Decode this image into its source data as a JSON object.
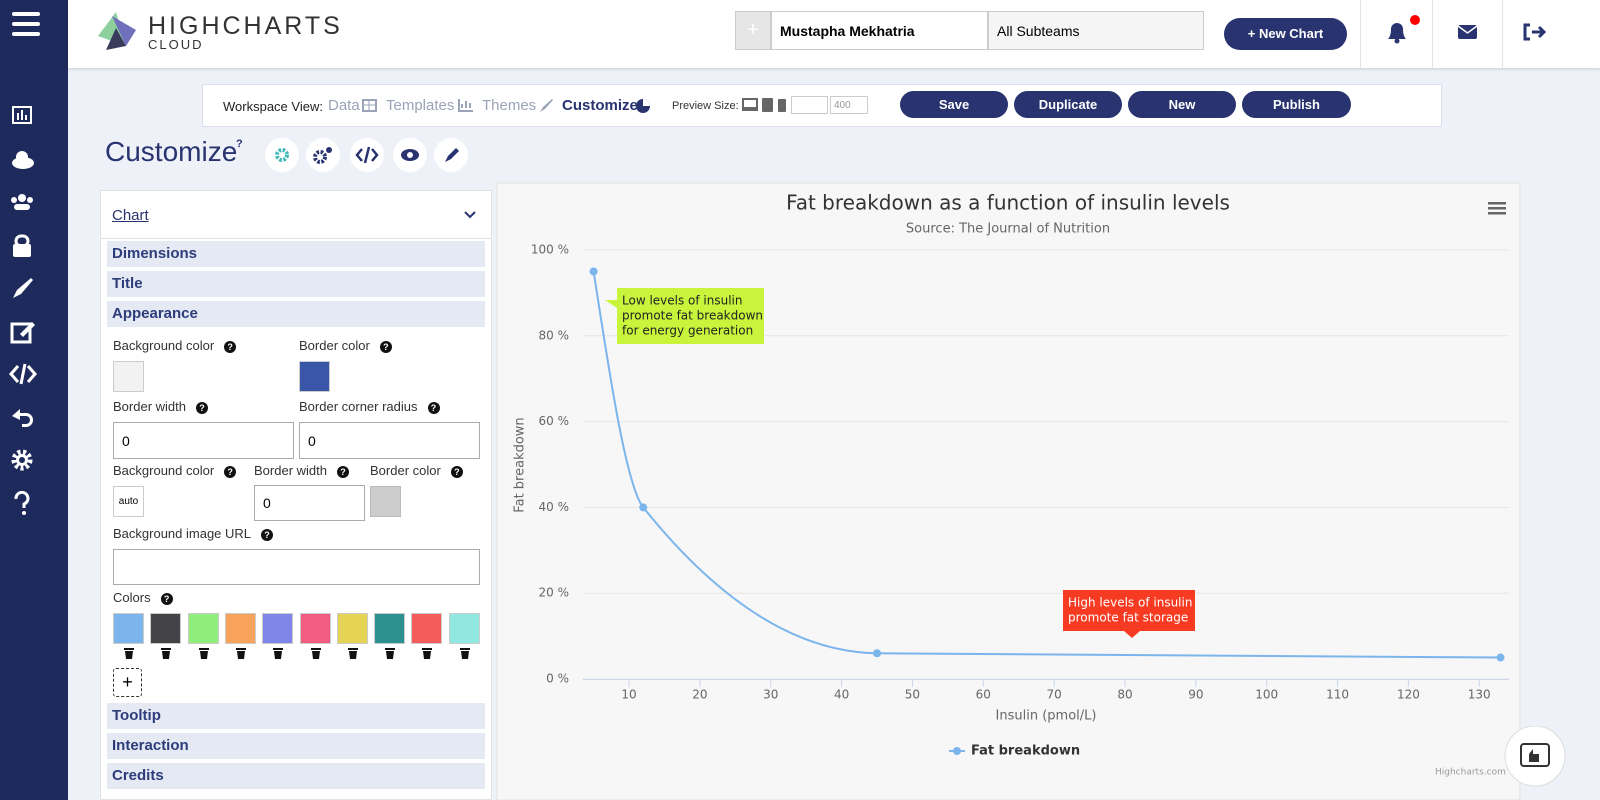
{
  "header": {
    "logo_title": "HIGHCHARTS",
    "logo_subtitle": "CLOUD",
    "user": "Mustapha Mekhatria",
    "team": "All Subteams",
    "new_chart": "New Chart"
  },
  "toolbar": {
    "label": "Workspace View:",
    "views": [
      "Data",
      "Templates",
      "Themes",
      "Customize"
    ],
    "preview_label": "Preview Size:",
    "preview_height": "400",
    "actions": [
      "Save",
      "Duplicate",
      "New",
      "Publish"
    ]
  },
  "page_title": "Customize",
  "panel": {
    "heading": "Chart",
    "sections_top": [
      "Dimensions",
      "Title",
      "Appearance"
    ],
    "appearance": {
      "bg_color_label": "Background color",
      "border_color_label": "Border color",
      "border_color": "#3a56a8",
      "border_width_label": "Border width",
      "border_width": "0",
      "radius_label": "Border corner radius",
      "radius": "0",
      "plot_bg_label": "Background color",
      "plot_bg": "auto",
      "plot_border_width_label": "Border width",
      "plot_border_width": "0",
      "plot_border_color_label": "Border color",
      "image_url_label": "Background image URL",
      "colors_label": "Colors",
      "colors": [
        "#7cb5ec",
        "#434348",
        "#90ed7d",
        "#f7a35c",
        "#8085e9",
        "#f15c80",
        "#e4d354",
        "#2b908f",
        "#f45b5b",
        "#91e8e1"
      ]
    },
    "sections_bottom": [
      "Tooltip",
      "Interaction",
      "Credits"
    ]
  },
  "chart_data": {
    "type": "spline",
    "title": "Fat breakdown as a function of insulin levels",
    "subtitle": "Source: The Journal of Nutrition",
    "x_label": "Insulin (pmol/L)",
    "y_label": "Fat breakdown",
    "x": [
      5,
      12,
      45,
      133
    ],
    "series": [
      {
        "name": "Fat breakdown",
        "color": "#7cb5ec",
        "values": [
          95,
          40,
          6,
          5
        ]
      }
    ],
    "xlim": [
      3.5,
      134.2
    ],
    "xticks": [
      10,
      20,
      30,
      40,
      50,
      60,
      70,
      80,
      90,
      100,
      110,
      120,
      130
    ],
    "ylim": [
      0,
      100
    ],
    "yticks": [
      {
        "value": 0,
        "label": "0 %"
      },
      {
        "value": 20,
        "label": "20 %"
      },
      {
        "value": 40,
        "label": "40 %"
      },
      {
        "value": 60,
        "label": "60 %"
      },
      {
        "value": 80,
        "label": "80 %"
      },
      {
        "value": 100,
        "label": "100 %"
      }
    ],
    "grid": true,
    "annotations": [
      {
        "text": [
          "Low levels of insulin",
          "promote fat breakdown",
          "for energy generation"
        ],
        "color": "#c8f53c"
      },
      {
        "text": [
          "High levels of insulin",
          "promote fat storage"
        ],
        "color": "#f73b22"
      }
    ],
    "credits": "Highcharts.com"
  }
}
